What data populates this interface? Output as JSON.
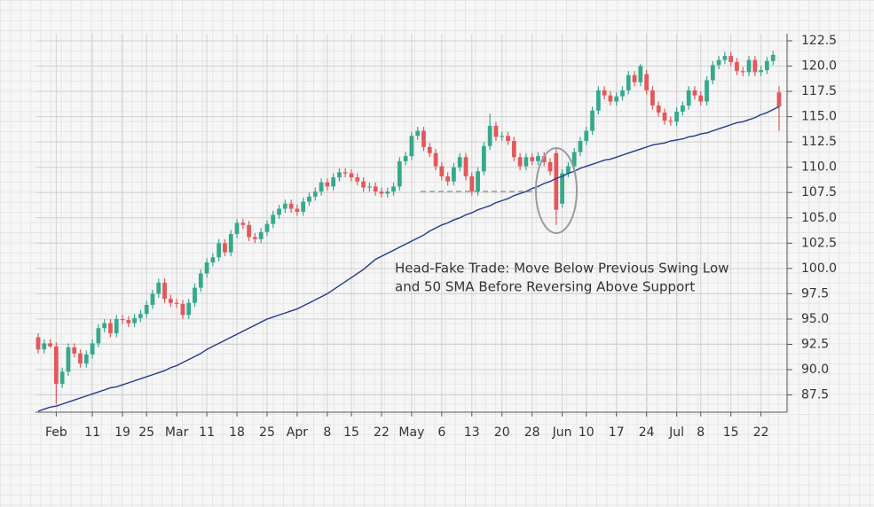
{
  "chart_data": {
    "type": "candlestick",
    "annotation": [
      "Head-Fake Trade: Move Below Previous Swing Low",
      "and 50 SMA Before Reversing Above Support"
    ],
    "categories": [
      null,
      null,
      null,
      "Feb",
      null,
      null,
      null,
      null,
      null,
      "11",
      null,
      null,
      null,
      null,
      "19",
      null,
      null,
      null,
      "25",
      null,
      null,
      null,
      null,
      "Mar",
      null,
      null,
      null,
      null,
      "11",
      null,
      null,
      null,
      null,
      "18",
      null,
      null,
      null,
      null,
      "25",
      null,
      null,
      null,
      null,
      "Apr",
      null,
      null,
      null,
      null,
      "8",
      null,
      null,
      null,
      "15",
      null,
      null,
      null,
      null,
      "22",
      null,
      null,
      null,
      null,
      "May",
      null,
      null,
      null,
      null,
      "6",
      null,
      null,
      null,
      null,
      "13",
      null,
      null,
      null,
      null,
      "20",
      null,
      null,
      null,
      null,
      "28",
      null,
      null,
      null,
      null,
      "Jun",
      null,
      null,
      null,
      "10",
      null,
      null,
      null,
      null,
      "17",
      null,
      null,
      null,
      null,
      "24",
      null,
      null,
      null,
      null,
      "Jul",
      null,
      null,
      null,
      "8",
      null,
      null,
      null,
      null,
      "15",
      null,
      null,
      null,
      null,
      "22",
      null,
      null,
      null
    ],
    "open": [
      93.2,
      92.0,
      92.6,
      92.3,
      88.6,
      89.8,
      92.2,
      91.6,
      90.6,
      91.5,
      92.6,
      94.1,
      94.6,
      93.6,
      95.0,
      94.9,
      94.6,
      95.1,
      95.5,
      96.4,
      97.5,
      98.6,
      97.0,
      96.6,
      96.5,
      95.4,
      96.6,
      98.1,
      99.5,
      100.6,
      101.1,
      102.5,
      101.6,
      103.4,
      104.5,
      104.3,
      103.1,
      102.9,
      103.6,
      104.4,
      105.3,
      105.9,
      106.4,
      105.9,
      105.6,
      106.6,
      107.1,
      107.6,
      108.5,
      108.1,
      109.0,
      109.5,
      109.4,
      109.0,
      108.6,
      108.0,
      108.1,
      107.6,
      107.4,
      107.6,
      108.1,
      110.6,
      111.1,
      113.1,
      113.6,
      112.0,
      111.4,
      110.1,
      109.1,
      108.6,
      110.0,
      111.0,
      109.1,
      107.6,
      109.6,
      112.1,
      114.1,
      113.0,
      113.1,
      112.6,
      111.0,
      110.1,
      111.0,
      110.6,
      111.1,
      110.5,
      111.4,
      106.4,
      109.4,
      110.1,
      111.5,
      112.6,
      113.6,
      115.6,
      117.6,
      117.1,
      116.5,
      117.0,
      117.6,
      119.1,
      118.4,
      119.2,
      117.6,
      116.1,
      115.4,
      114.6,
      114.5,
      115.5,
      116.1,
      117.6,
      117.1,
      116.5,
      118.6,
      120.1,
      120.6,
      121.0,
      120.4,
      119.5,
      119.4,
      120.6,
      119.4,
      119.6,
      120.5,
      117.4
    ],
    "high": [
      93.6,
      93.0,
      93.0,
      92.7,
      90.2,
      92.6,
      92.6,
      92.0,
      91.9,
      93.0,
      94.5,
      95.0,
      95.0,
      95.4,
      95.4,
      95.3,
      95.5,
      95.9,
      96.8,
      97.9,
      99.0,
      99.0,
      97.4,
      97.0,
      96.9,
      97.0,
      98.5,
      99.9,
      101.0,
      101.5,
      102.9,
      102.9,
      103.8,
      104.9,
      104.9,
      104.7,
      103.5,
      104.0,
      104.8,
      105.7,
      106.3,
      106.8,
      106.8,
      106.3,
      107.0,
      107.5,
      108.0,
      108.9,
      108.9,
      109.4,
      109.9,
      109.9,
      109.8,
      109.4,
      109.0,
      108.5,
      108.5,
      108.0,
      108.0,
      108.5,
      111.0,
      111.5,
      113.5,
      114.0,
      114.0,
      112.4,
      111.8,
      110.5,
      109.5,
      110.4,
      111.4,
      111.4,
      109.5,
      110.0,
      112.5,
      115.3,
      114.5,
      113.5,
      113.5,
      113.0,
      111.4,
      111.4,
      111.4,
      111.5,
      111.5,
      110.9,
      112.0,
      109.8,
      110.5,
      111.9,
      113.0,
      114.0,
      116.0,
      118.0,
      118.0,
      117.5,
      117.4,
      118.0,
      119.5,
      119.5,
      120.2,
      119.6,
      118.0,
      116.5,
      115.8,
      115.0,
      115.9,
      116.5,
      118.0,
      118.0,
      117.5,
      119.0,
      120.5,
      121.0,
      121.4,
      121.4,
      120.8,
      119.9,
      121.0,
      121.0,
      120.0,
      120.9,
      121.5,
      118.0
    ],
    "low": [
      91.6,
      91.6,
      92.2,
      86.6,
      88.2,
      89.4,
      91.2,
      90.2,
      90.2,
      91.1,
      92.2,
      93.7,
      93.2,
      93.2,
      94.5,
      94.2,
      94.2,
      94.7,
      95.1,
      96.0,
      97.1,
      96.6,
      96.2,
      96.1,
      95.0,
      95.0,
      96.2,
      97.7,
      99.1,
      100.2,
      100.7,
      101.2,
      101.2,
      103.0,
      103.9,
      102.7,
      102.5,
      102.5,
      103.2,
      104.0,
      104.9,
      105.5,
      105.5,
      105.2,
      105.2,
      106.2,
      106.7,
      107.2,
      107.7,
      107.7,
      108.6,
      109.0,
      108.6,
      108.2,
      107.6,
      107.6,
      107.2,
      107.0,
      107.0,
      107.2,
      107.7,
      110.2,
      110.7,
      112.7,
      111.6,
      111.0,
      109.7,
      108.7,
      108.2,
      108.2,
      109.6,
      108.7,
      107.2,
      107.2,
      109.2,
      111.7,
      112.6,
      112.6,
      112.2,
      110.6,
      109.7,
      109.7,
      110.2,
      110.2,
      110.1,
      109.2,
      104.3,
      106.0,
      109.0,
      109.7,
      111.1,
      112.2,
      113.2,
      115.2,
      116.7,
      116.1,
      116.1,
      116.6,
      117.2,
      118.0,
      118.0,
      117.2,
      115.7,
      115.0,
      114.2,
      114.1,
      114.1,
      115.1,
      115.7,
      116.7,
      116.1,
      116.1,
      118.2,
      119.7,
      120.2,
      120.0,
      119.1,
      119.0,
      119.0,
      119.0,
      119.0,
      119.2,
      120.1,
      113.6
    ],
    "close": [
      92.0,
      92.6,
      92.3,
      88.6,
      89.8,
      92.2,
      91.6,
      90.6,
      91.5,
      92.6,
      94.1,
      94.6,
      93.6,
      95.0,
      94.9,
      94.6,
      95.1,
      95.5,
      96.4,
      97.5,
      98.6,
      97.0,
      96.6,
      96.5,
      95.4,
      96.6,
      98.1,
      99.5,
      100.6,
      101.1,
      102.5,
      101.6,
      103.4,
      104.5,
      104.3,
      103.1,
      102.9,
      103.6,
      104.4,
      105.3,
      105.9,
      106.4,
      105.9,
      105.6,
      106.6,
      107.1,
      107.6,
      108.5,
      108.1,
      109.0,
      109.5,
      109.4,
      109.0,
      108.6,
      108.0,
      108.1,
      107.6,
      107.4,
      107.6,
      108.1,
      110.6,
      111.1,
      113.1,
      113.6,
      112.0,
      111.4,
      110.1,
      109.1,
      108.6,
      110.0,
      111.0,
      109.1,
      107.6,
      109.6,
      112.1,
      114.1,
      113.0,
      113.1,
      112.6,
      111.0,
      110.1,
      111.0,
      110.6,
      111.1,
      110.5,
      109.6,
      105.8,
      109.4,
      110.1,
      111.5,
      112.6,
      113.6,
      115.6,
      117.6,
      117.1,
      116.5,
      117.0,
      117.6,
      119.1,
      118.4,
      120.0,
      117.6,
      116.1,
      115.4,
      114.6,
      114.5,
      115.5,
      116.1,
      117.6,
      117.1,
      116.5,
      118.6,
      120.1,
      120.6,
      121.0,
      120.4,
      119.5,
      119.4,
      120.6,
      119.4,
      119.6,
      120.5,
      121.1,
      116.0
    ],
    "sma": {
      "color": "#26398a",
      "values": [
        85.9,
        86.1,
        86.3,
        86.4,
        86.6,
        86.8,
        87.0,
        87.2,
        87.4,
        87.6,
        87.8,
        88.0,
        88.2,
        88.3,
        88.5,
        88.7,
        88.9,
        89.1,
        89.3,
        89.5,
        89.7,
        89.9,
        90.2,
        90.4,
        90.7,
        91.0,
        91.3,
        91.6,
        92.0,
        92.3,
        92.6,
        92.9,
        93.2,
        93.5,
        93.8,
        94.1,
        94.4,
        94.7,
        95.0,
        95.2,
        95.4,
        95.6,
        95.8,
        96.0,
        96.3,
        96.6,
        96.9,
        97.2,
        97.5,
        97.9,
        98.3,
        98.7,
        99.1,
        99.5,
        99.9,
        100.4,
        100.9,
        101.2,
        101.5,
        101.8,
        102.1,
        102.4,
        102.7,
        103.0,
        103.3,
        103.7,
        104.0,
        104.3,
        104.5,
        104.8,
        105.0,
        105.3,
        105.5,
        105.8,
        106.0,
        106.2,
        106.5,
        106.7,
        106.9,
        107.2,
        107.4,
        107.6,
        107.9,
        108.1,
        108.4,
        108.6,
        108.9,
        109.1,
        109.4,
        109.6,
        109.9,
        110.1,
        110.3,
        110.5,
        110.7,
        110.8,
        111.0,
        111.2,
        111.4,
        111.6,
        111.8,
        112.0,
        112.2,
        112.3,
        112.4,
        112.6,
        112.7,
        112.8,
        113.0,
        113.1,
        113.3,
        113.4,
        113.6,
        113.8,
        114.0,
        114.2,
        114.4,
        114.5,
        114.7,
        114.9,
        115.2,
        115.4,
        115.7,
        116.0
      ]
    },
    "up_color": "#36a98c",
    "down_color": "#e2585b",
    "ylim": [
      85.8,
      123.2
    ],
    "yticks": [
      87.5,
      {
        "value": 90,
        "label": "90.0"
      },
      92.5,
      {
        "value": 95,
        "label": "95.0"
      },
      97.5,
      {
        "value": 100,
        "label": "100.0"
      },
      102.5,
      {
        "value": 105,
        "label": "105.0"
      },
      107.5,
      {
        "value": 110,
        "label": "110.0"
      },
      112.5,
      {
        "value": 115,
        "label": "115.0"
      },
      117.5,
      {
        "value": 120,
        "label": "120.0"
      },
      122.5
    ],
    "grid": true
  }
}
